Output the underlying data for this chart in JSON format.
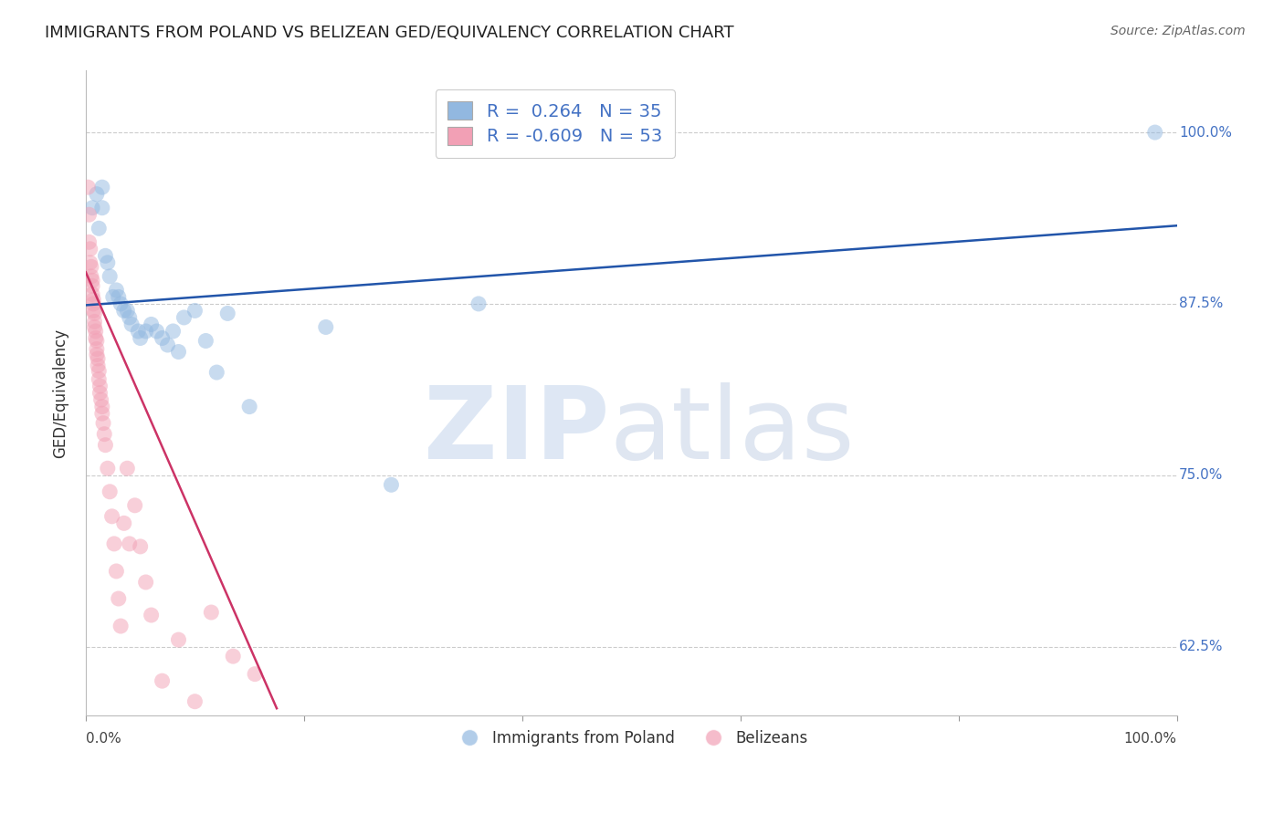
{
  "title": "IMMIGRANTS FROM POLAND VS BELIZEAN GED/EQUIVALENCY CORRELATION CHART",
  "source": "Source: ZipAtlas.com",
  "ylabel": "GED/Equivalency",
  "ytick_labels": [
    "100.0%",
    "87.5%",
    "75.0%",
    "62.5%"
  ],
  "ytick_values": [
    1.0,
    0.875,
    0.75,
    0.625
  ],
  "xlim": [
    0.0,
    1.0
  ],
  "ylim": [
    0.575,
    1.045
  ],
  "blue_color": "#92b8e0",
  "pink_color": "#f2a0b5",
  "blue_line_color": "#2255aa",
  "pink_line_color": "#cc3366",
  "blue_scatter_x": [
    0.006,
    0.01,
    0.012,
    0.015,
    0.015,
    0.018,
    0.02,
    0.022,
    0.025,
    0.028,
    0.03,
    0.032,
    0.035,
    0.038,
    0.04,
    0.042,
    0.048,
    0.05,
    0.055,
    0.06,
    0.065,
    0.07,
    0.075,
    0.08,
    0.085,
    0.09,
    0.1,
    0.11,
    0.12,
    0.13,
    0.15,
    0.22,
    0.28,
    0.36,
    0.98
  ],
  "blue_scatter_y": [
    0.945,
    0.955,
    0.93,
    0.945,
    0.96,
    0.91,
    0.905,
    0.895,
    0.88,
    0.885,
    0.88,
    0.875,
    0.87,
    0.87,
    0.865,
    0.86,
    0.855,
    0.85,
    0.855,
    0.86,
    0.855,
    0.85,
    0.845,
    0.855,
    0.84,
    0.865,
    0.87,
    0.848,
    0.825,
    0.868,
    0.8,
    0.858,
    0.743,
    0.875,
    1.0
  ],
  "pink_scatter_x": [
    0.002,
    0.003,
    0.003,
    0.004,
    0.004,
    0.005,
    0.005,
    0.006,
    0.006,
    0.006,
    0.007,
    0.007,
    0.007,
    0.008,
    0.008,
    0.008,
    0.009,
    0.009,
    0.01,
    0.01,
    0.01,
    0.011,
    0.011,
    0.012,
    0.012,
    0.013,
    0.013,
    0.014,
    0.015,
    0.015,
    0.016,
    0.017,
    0.018,
    0.02,
    0.022,
    0.024,
    0.026,
    0.028,
    0.03,
    0.032,
    0.035,
    0.038,
    0.04,
    0.045,
    0.05,
    0.055,
    0.06,
    0.07,
    0.085,
    0.1,
    0.115,
    0.135,
    0.155
  ],
  "pink_scatter_y": [
    0.96,
    0.94,
    0.92,
    0.915,
    0.905,
    0.902,
    0.895,
    0.892,
    0.888,
    0.882,
    0.878,
    0.875,
    0.87,
    0.868,
    0.862,
    0.858,
    0.855,
    0.85,
    0.848,
    0.842,
    0.838,
    0.835,
    0.83,
    0.826,
    0.82,
    0.815,
    0.81,
    0.805,
    0.8,
    0.795,
    0.788,
    0.78,
    0.772,
    0.755,
    0.738,
    0.72,
    0.7,
    0.68,
    0.66,
    0.64,
    0.715,
    0.755,
    0.7,
    0.728,
    0.698,
    0.672,
    0.648,
    0.6,
    0.63,
    0.585,
    0.65,
    0.618,
    0.605
  ],
  "blue_trend_x": [
    0.0,
    1.0
  ],
  "blue_trend_y": [
    0.874,
    0.932
  ],
  "pink_trend_x": [
    0.0,
    0.175
  ],
  "pink_trend_y": [
    0.898,
    0.58
  ],
  "legend_blue_label": "Immigrants from Poland",
  "legend_pink_label": "Belizeans",
  "legend_r1_text": "R =  0.264   N = 35",
  "legend_r2_text": "R = -0.609   N = 53"
}
